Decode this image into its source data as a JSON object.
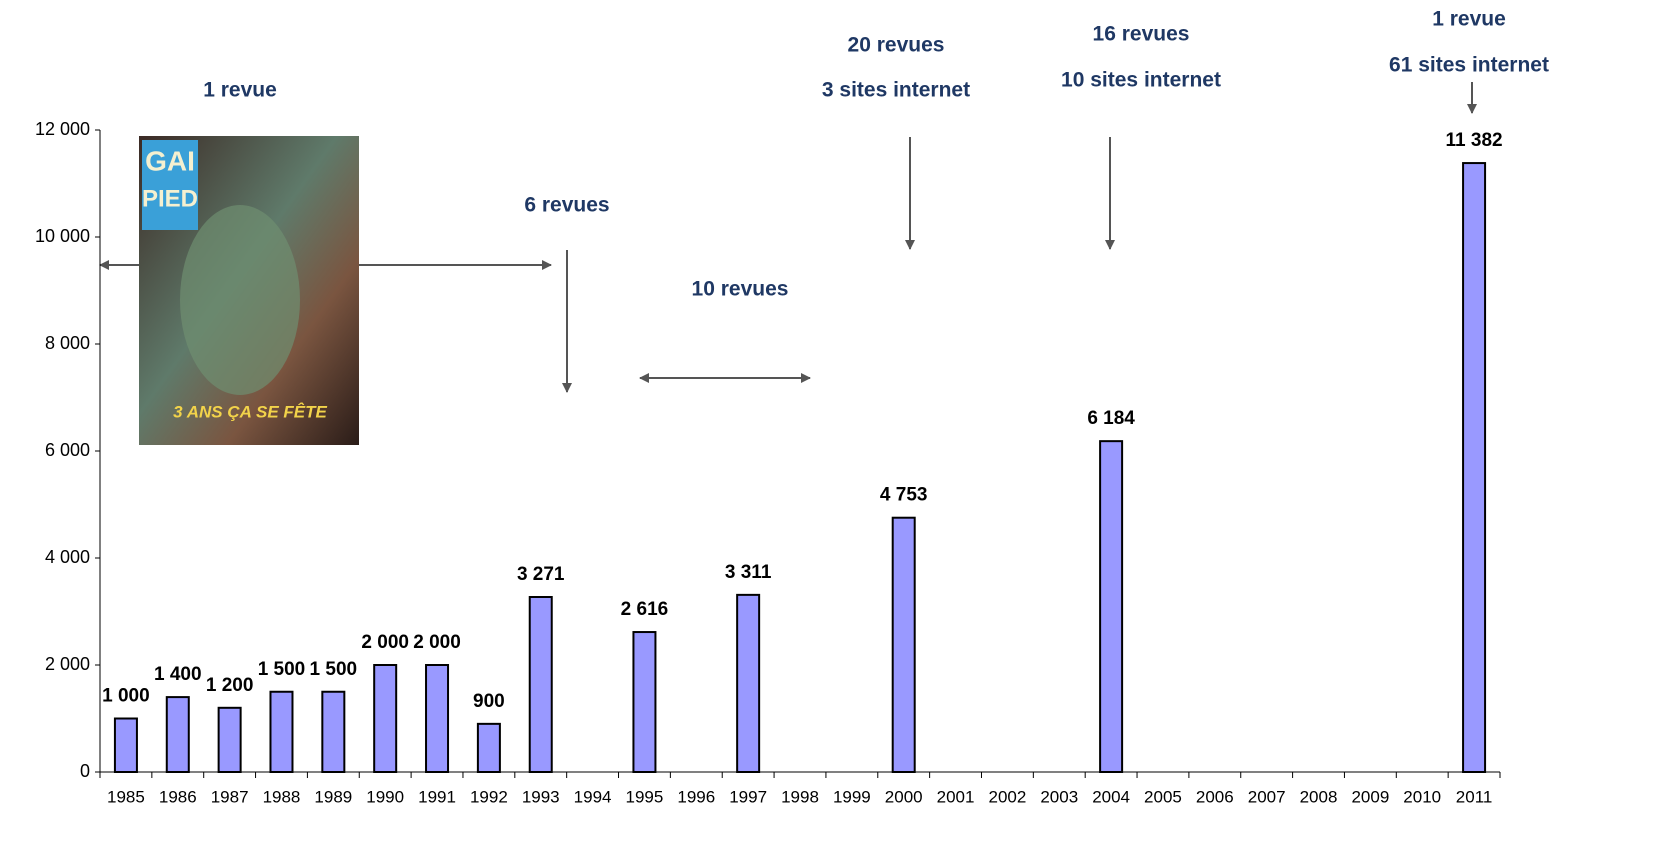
{
  "chart_data": {
    "type": "bar",
    "categories": [
      "1985",
      "1986",
      "1987",
      "1988",
      "1989",
      "1990",
      "1991",
      "1992",
      "1993",
      "1994",
      "1995",
      "1996",
      "1997",
      "1998",
      "1999",
      "2000",
      "2001",
      "2002",
      "2003",
      "2004",
      "2005",
      "2006",
      "2007",
      "2008",
      "2009",
      "2010",
      "2011"
    ],
    "values": [
      1000,
      1400,
      1200,
      1500,
      1500,
      2000,
      2000,
      900,
      3271,
      null,
      2616,
      null,
      3311,
      null,
      null,
      4753,
      null,
      null,
      null,
      6184,
      null,
      null,
      null,
      null,
      null,
      null,
      11382
    ],
    "value_labels": [
      "1 000",
      "1 400",
      "1 200",
      "1 500",
      "1 500",
      "2 000",
      "2 000",
      "900",
      "3 271",
      null,
      "2 616",
      null,
      "3 311",
      null,
      null,
      "4 753",
      null,
      null,
      null,
      "6 184",
      null,
      null,
      null,
      null,
      null,
      null,
      "11 382"
    ],
    "color": "#9999ff",
    "ylim": [
      0,
      12000
    ],
    "yticks": [
      0,
      {
        "value": 2000,
        "label": "2 000"
      },
      {
        "value": 4000,
        "label": "4 000"
      },
      {
        "value": 6000,
        "label": "6 000"
      },
      {
        "value": 8000,
        "label": "8 000"
      },
      {
        "value": 10000,
        "label": "10 000"
      },
      {
        "value": 12000,
        "label": "12 000"
      }
    ],
    "grid": false,
    "annotations": [
      "1 revue",
      "6 revues",
      "10 revues",
      "20 revues",
      "3 sites internet",
      "16 revues",
      "10 sites internet",
      "1 revue",
      "61 sites internet"
    ],
    "image_text": [
      "GAI",
      "PIED",
      "3 ANS ÇA SE FÊTE"
    ]
  }
}
